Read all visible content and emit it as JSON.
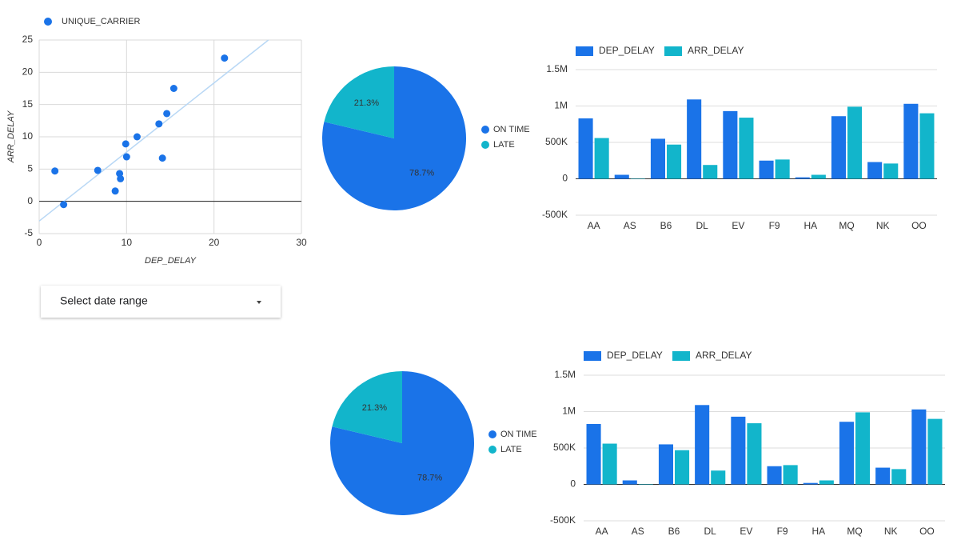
{
  "chart_data": [
    {
      "type": "scatter",
      "series": [
        {
          "name": "UNIQUE_CARRIER",
          "color": "#1a73e8",
          "x": [
            1.8,
            2.8,
            6.7,
            8.7,
            9.2,
            9.3,
            9.9,
            10.0,
            11.2,
            13.7,
            14.1,
            14.6,
            15.4,
            21.2
          ],
          "values": [
            4.7,
            -0.5,
            4.8,
            1.6,
            4.3,
            3.5,
            8.9,
            6.9,
            10.0,
            12.0,
            6.7,
            13.6,
            17.5,
            22.2
          ]
        }
      ],
      "xlabel": "DEP_DELAY",
      "ylabel": "ARR_DELAY",
      "xlim": [
        0,
        30
      ],
      "xticks": [
        0,
        10,
        20,
        30
      ],
      "ylim": [
        -5,
        25
      ],
      "yticks": [
        -5,
        0,
        5,
        10,
        15,
        20,
        25
      ],
      "grid": true,
      "trendline": "linear",
      "trendline_color": "#b9d8f5"
    },
    {
      "type": "pie",
      "categories": [
        "ON TIME",
        "LATE"
      ],
      "values": [
        78.7,
        21.3
      ],
      "value_labels": [
        "78.7%",
        "21.3%"
      ],
      "colors": [
        "#1a73e8",
        "#12b5cb"
      ],
      "legend": "right"
    },
    {
      "type": "bar",
      "categories": [
        "AA",
        "AS",
        "B6",
        "DL",
        "EV",
        "F9",
        "HA",
        "MQ",
        "NK",
        "OO"
      ],
      "series": [
        {
          "name": "DEP_DELAY",
          "color": "#1a73e8",
          "values": [
            830000,
            55000,
            550000,
            1090000,
            930000,
            250000,
            20000,
            860000,
            230000,
            1030000
          ]
        },
        {
          "name": "ARR_DELAY",
          "color": "#12b5cb",
          "values": [
            560000,
            -5000,
            470000,
            190000,
            840000,
            265000,
            55000,
            990000,
            210000,
            900000
          ]
        }
      ],
      "ylim": [
        -500000,
        1500000
      ],
      "yticks": [
        {
          "value": -500000,
          "label": "-500K"
        },
        0,
        {
          "value": 500000,
          "label": "500K"
        },
        {
          "value": 1000000,
          "label": "1M"
        },
        {
          "value": 1500000,
          "label": "1.5M"
        }
      ],
      "grid": true,
      "legend": "top"
    },
    {
      "type": "pie",
      "categories": [
        "ON TIME",
        "LATE"
      ],
      "values": [
        78.7,
        21.3
      ],
      "value_labels": [
        "78.7%",
        "21.3%"
      ],
      "colors": [
        "#1a73e8",
        "#12b5cb"
      ],
      "legend": "right"
    },
    {
      "type": "bar",
      "categories": [
        "AA",
        "AS",
        "B6",
        "DL",
        "EV",
        "F9",
        "HA",
        "MQ",
        "NK",
        "OO"
      ],
      "series": [
        {
          "name": "DEP_DELAY",
          "color": "#1a73e8",
          "values": [
            830000,
            55000,
            550000,
            1090000,
            930000,
            250000,
            20000,
            860000,
            230000,
            1030000
          ]
        },
        {
          "name": "ARR_DELAY",
          "color": "#12b5cb",
          "values": [
            560000,
            -5000,
            470000,
            190000,
            840000,
            265000,
            55000,
            990000,
            210000,
            900000
          ]
        }
      ],
      "ylim": [
        -500000,
        1500000
      ],
      "yticks": [
        {
          "value": -500000,
          "label": "-500K"
        },
        0,
        {
          "value": 500000,
          "label": "500K"
        },
        {
          "value": 1000000,
          "label": "1M"
        },
        {
          "value": 1500000,
          "label": "1.5M"
        }
      ],
      "grid": true,
      "legend": "top"
    }
  ],
  "controls": {
    "date_range": "Select date range"
  }
}
